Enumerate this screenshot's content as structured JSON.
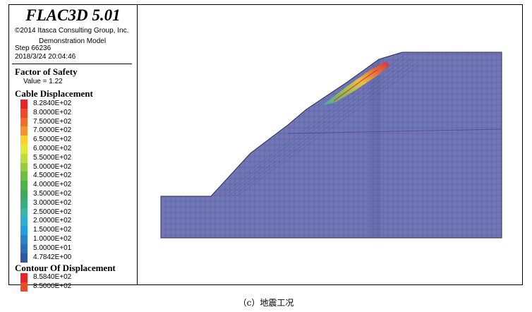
{
  "header": {
    "software": "FLAC3D 5.01",
    "copyright": "©2014 Itasca Consulting Group, Inc.",
    "model_name": "Demonstration Model",
    "step": "Step 66236",
    "timestamp": "2018/3/24 20:04:46"
  },
  "factor_of_safety": {
    "title": "Factor of Safety",
    "value_text": "Value = 1.22"
  },
  "cable_displacement": {
    "title": "Cable Displacement",
    "entries": [
      {
        "label": "8.2840E+02",
        "color": "#e8232a"
      },
      {
        "label": "8.0000E+02",
        "color": "#ef4a28"
      },
      {
        "label": "7.5000E+02",
        "color": "#f46c2a"
      },
      {
        "label": "7.0000E+02",
        "color": "#f7922c"
      },
      {
        "label": "6.5000E+02",
        "color": "#fbd033"
      },
      {
        "label": "6.0000E+02",
        "color": "#e4e83c"
      },
      {
        "label": "5.5000E+02",
        "color": "#bfdc3f"
      },
      {
        "label": "5.0000E+02",
        "color": "#96cc3e"
      },
      {
        "label": "4.5000E+02",
        "color": "#6fbe44"
      },
      {
        "label": "4.0000E+02",
        "color": "#4fb34a"
      },
      {
        "label": "3.5000E+02",
        "color": "#3aac5c"
      },
      {
        "label": "3.0000E+02",
        "color": "#37b07f"
      },
      {
        "label": "2.5000E+02",
        "color": "#3bb5a9"
      },
      {
        "label": "2.0000E+02",
        "color": "#2aaed2"
      },
      {
        "label": "1.5000E+02",
        "color": "#1e9fe0"
      },
      {
        "label": "1.0000E+02",
        "color": "#2584cd"
      },
      {
        "label": "5.0000E+01",
        "color": "#2a6db9"
      },
      {
        "label": "4.7842E+00",
        "color": "#2b57a5"
      }
    ]
  },
  "contour_of_displacement": {
    "title": "Contour Of Displacement",
    "entries": [
      {
        "label": "8.5840E+02",
        "color": "#e8232a"
      },
      {
        "label": "8.5000E+02",
        "color": "#ef4a28"
      }
    ]
  },
  "mesh_color": "#7176b6",
  "caption": "（c）地震工况"
}
